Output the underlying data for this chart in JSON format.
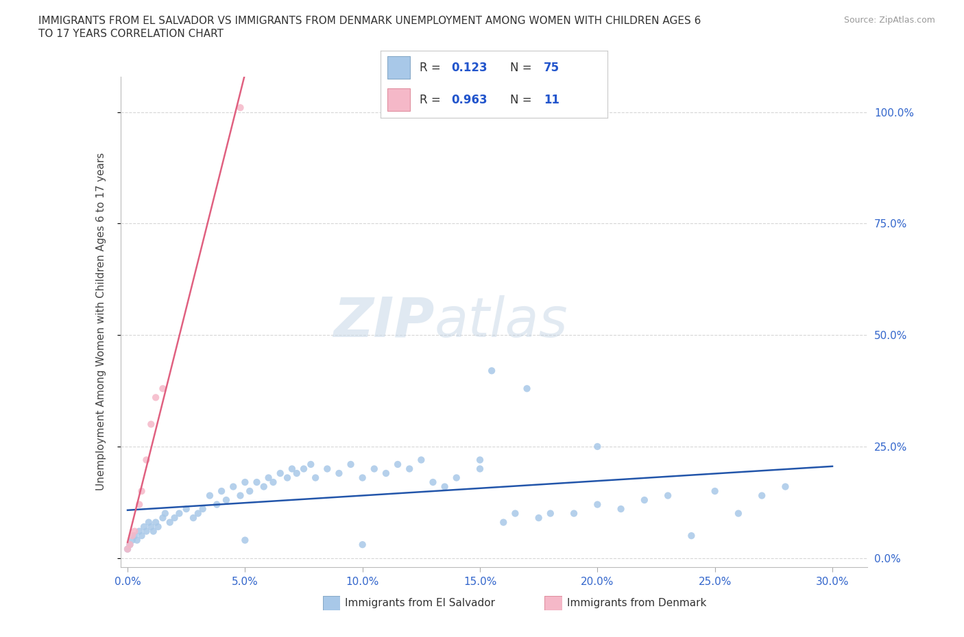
{
  "title_line1": "IMMIGRANTS FROM EL SALVADOR VS IMMIGRANTS FROM DENMARK UNEMPLOYMENT AMONG WOMEN WITH CHILDREN AGES 6",
  "title_line2": "TO 17 YEARS CORRELATION CHART",
  "source": "Source: ZipAtlas.com",
  "xlabel_ticks": [
    0.0,
    0.05,
    0.1,
    0.15,
    0.2,
    0.25,
    0.3
  ],
  "ylabel_ticks": [
    0.0,
    0.25,
    0.5,
    0.75,
    1.0
  ],
  "xlim": [
    -0.003,
    0.315
  ],
  "ylim": [
    -0.02,
    1.08
  ],
  "watermark": "ZIPatlas",
  "el_salvador_color": "#a8c8e8",
  "denmark_color": "#f5b8c8",
  "el_salvador_trend_color": "#2255aa",
  "denmark_trend_color": "#e06080",
  "background_color": "#ffffff",
  "grid_color": "#cccccc",
  "legend_blue_color": "#a8c8e8",
  "legend_pink_color": "#f5b8c8",
  "legend_text_color": "#333333",
  "legend_value_color": "#2255cc",
  "es_x": [
    0.0,
    0.001,
    0.002,
    0.003,
    0.004,
    0.005,
    0.006,
    0.007,
    0.008,
    0.009,
    0.01,
    0.011,
    0.012,
    0.013,
    0.015,
    0.016,
    0.018,
    0.02,
    0.022,
    0.025,
    0.028,
    0.03,
    0.032,
    0.035,
    0.038,
    0.04,
    0.042,
    0.045,
    0.048,
    0.05,
    0.052,
    0.055,
    0.058,
    0.06,
    0.062,
    0.065,
    0.068,
    0.07,
    0.072,
    0.075,
    0.078,
    0.08,
    0.085,
    0.09,
    0.095,
    0.1,
    0.105,
    0.11,
    0.115,
    0.12,
    0.125,
    0.13,
    0.135,
    0.14,
    0.15,
    0.155,
    0.16,
    0.165,
    0.17,
    0.175,
    0.18,
    0.19,
    0.2,
    0.21,
    0.22,
    0.23,
    0.24,
    0.25,
    0.26,
    0.27,
    0.28,
    0.2,
    0.15,
    0.1,
    0.05
  ],
  "es_y": [
    0.02,
    0.03,
    0.04,
    0.05,
    0.04,
    0.06,
    0.05,
    0.07,
    0.06,
    0.08,
    0.07,
    0.06,
    0.08,
    0.07,
    0.09,
    0.1,
    0.08,
    0.09,
    0.1,
    0.11,
    0.09,
    0.1,
    0.11,
    0.14,
    0.12,
    0.15,
    0.13,
    0.16,
    0.14,
    0.17,
    0.15,
    0.17,
    0.16,
    0.18,
    0.17,
    0.19,
    0.18,
    0.2,
    0.19,
    0.2,
    0.21,
    0.18,
    0.2,
    0.19,
    0.21,
    0.18,
    0.2,
    0.19,
    0.21,
    0.2,
    0.22,
    0.17,
    0.16,
    0.18,
    0.2,
    0.42,
    0.08,
    0.1,
    0.38,
    0.09,
    0.1,
    0.1,
    0.12,
    0.11,
    0.13,
    0.14,
    0.05,
    0.15,
    0.1,
    0.14,
    0.16,
    0.25,
    0.22,
    0.03,
    0.04
  ],
  "dk_x": [
    0.0,
    0.001,
    0.002,
    0.003,
    0.005,
    0.006,
    0.008,
    0.01,
    0.012,
    0.015,
    0.048
  ],
  "dk_y": [
    0.02,
    0.03,
    0.05,
    0.06,
    0.12,
    0.15,
    0.22,
    0.3,
    0.36,
    0.38,
    1.01
  ]
}
